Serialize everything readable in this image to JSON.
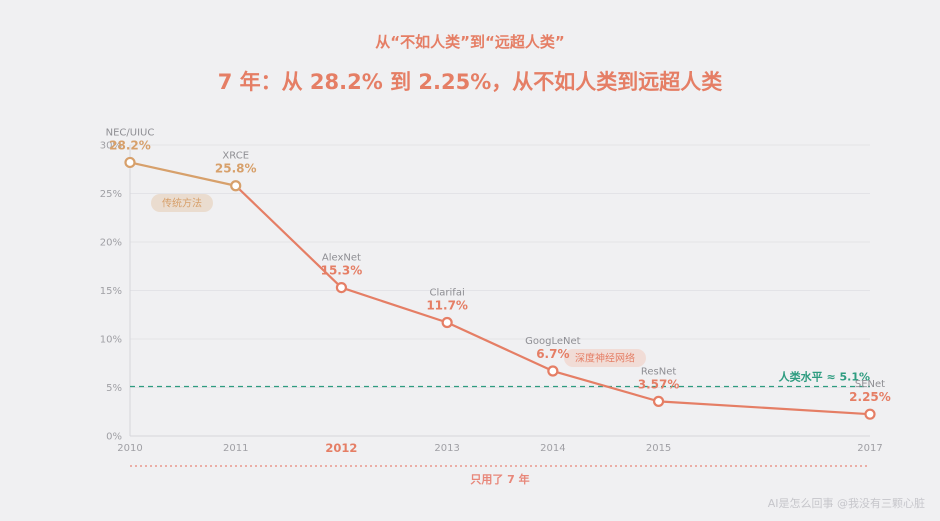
{
  "chart_data": {
    "type": "line",
    "subtitle": "从“不如人类”到“远超人类”",
    "title": "7 年：从 28.2% 到 2.25%，从不如人类到远超人类",
    "x": [
      2010,
      2011,
      2012,
      2013,
      2014,
      2015,
      2017
    ],
    "x_tick_labels": [
      "2010",
      "2011",
      "2012",
      "2013",
      "2014",
      "2015",
      "2017"
    ],
    "highlighted_x": 2012,
    "xlim": [
      2010,
      2017
    ],
    "y_ticks": [
      0,
      5,
      10,
      15,
      20,
      25,
      30
    ],
    "y_tick_labels": [
      "0%",
      "5%",
      "10%",
      "15%",
      "20%",
      "25%",
      "30%"
    ],
    "ylim": [
      0,
      30
    ],
    "grid": true,
    "series": [
      {
        "values": [
          28.2,
          25.8,
          15.3,
          11.7,
          6.7,
          3.57,
          2.25
        ],
        "point_names": [
          "NEC/UIUC",
          "XRCE",
          "AlexNet",
          "Clarifai",
          "GoogLeNet",
          "ResNet",
          "SENet"
        ],
        "value_labels": [
          "28.2%",
          "25.8%",
          "15.3%",
          "11.7%",
          "6.7%",
          "3.57%",
          "2.25%"
        ]
      }
    ],
    "eras": [
      {
        "label": "传统方法",
        "from": 2010,
        "to": 2011,
        "color": "#d7a06b",
        "bg": "#eadccf"
      },
      {
        "label": "深度神经网络",
        "from": 2012,
        "to": 2017,
        "color": "#e57e65",
        "bg": "#f1dcd6"
      }
    ],
    "reference_line": {
      "value": 5.1,
      "label": "人类水平 ≈ 5.1%",
      "color": "#2e9c80",
      "dashed": true
    },
    "span": {
      "from": 2010,
      "to": 2017,
      "label": "只用了 7 年",
      "color": "#e8877a"
    }
  },
  "footer": {
    "watermark": "AI是怎么回事 @我没有三颗心脏"
  },
  "colors": {
    "background": "#f0f0f2",
    "title": "#e57e65",
    "axis_text": "#a0a0a5",
    "point_name_text": "#8e8e93",
    "grid": "#e3e3e7",
    "axis_line": "#d6d6db",
    "point_fill": "#ffffff",
    "watermark": "#c6c6cb"
  }
}
